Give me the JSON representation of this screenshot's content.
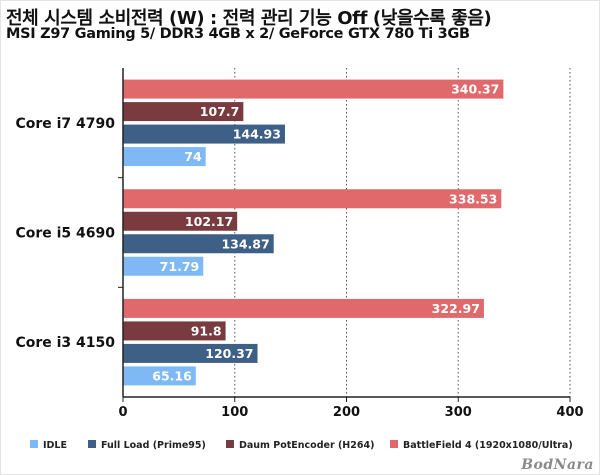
{
  "header": {
    "title": "전체 시스템 소비전력 (W) : 전력 관리 기능 Off (낮을수록 좋음)",
    "subtitle": "MSI Z97 Gaming 5/ DDR3 4GB x 2/ GeForce GTX 780 Ti 3GB"
  },
  "watermark": "BodNara",
  "chart_data": {
    "type": "bar",
    "orientation": "horizontal",
    "title": "전체 시스템 소비전력 (W) : 전력 관리 기능 Off (낮을수록 좋음)",
    "subtitle": "MSI Z97 Gaming 5/ DDR3 4GB x 2/ GeForce GTX 780 Ti 3GB",
    "categories": [
      "Core i7 4790",
      "Core i5 4690",
      "Core i3 4150"
    ],
    "series": [
      {
        "name": "IDLE",
        "color": "#7eb9f5",
        "values": [
          74,
          71.79,
          65.16
        ]
      },
      {
        "name": "Full Load (Prime95)",
        "color": "#3e5f86",
        "values": [
          144.93,
          134.87,
          120.37
        ]
      },
      {
        "name": "Daum PotEncoder (H264)",
        "color": "#7a3b40",
        "values": [
          107.7,
          102.17,
          91.8
        ]
      },
      {
        "name": "BattleField 4 (1920x1080/Ultra)",
        "color": "#e0696c",
        "values": [
          340.37,
          338.53,
          322.97
        ]
      }
    ],
    "xlim": [
      0,
      400
    ],
    "xticks": [
      0,
      100,
      200,
      300,
      400
    ],
    "grid": "vertical dotted",
    "legend": "bottom",
    "xlabel": "",
    "ylabel": ""
  }
}
